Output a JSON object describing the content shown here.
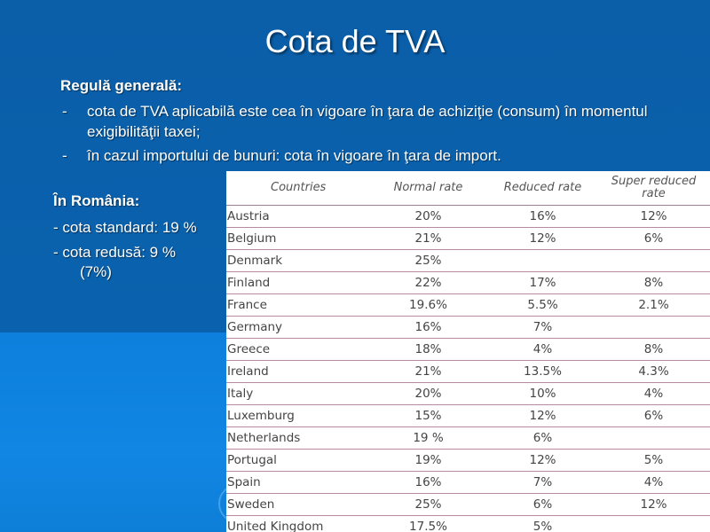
{
  "slide": {
    "title": "Cota de TVA",
    "rule_heading": "Regulă generală:",
    "bullets": [
      "cota de TVA aplicabilă este cea în vigoare în ţara de achiziţie (consum) în momentul exigibilităţii taxei;",
      "în cazul importului de bunuri: cota în vigoare în ţara de import."
    ],
    "bullet_marker": "-",
    "romania": {
      "heading": "În România:",
      "standard": "- cota standard: 19 %",
      "reduced": "- cota redusă: 9 %",
      "reduced_cont": "(7%)"
    }
  },
  "table": {
    "headers": [
      "Countries",
      "Normal rate",
      "Reduced rate",
      "Super reduced rate"
    ],
    "rows": [
      [
        "Austria",
        "20%",
        "16%",
        "12%"
      ],
      [
        "Belgium",
        "21%",
        "12%",
        "6%"
      ],
      [
        "Denmark",
        "25%",
        "",
        ""
      ],
      [
        "Finland",
        "22%",
        "17%",
        "8%"
      ],
      [
        "France",
        "19.6%",
        "5.5%",
        "2.1%"
      ],
      [
        "Germany",
        "16%",
        "7%",
        ""
      ],
      [
        "Greece",
        "18%",
        "4%",
        "8%"
      ],
      [
        "Ireland",
        "21%",
        "13.5%",
        "4.3%"
      ],
      [
        "Italy",
        "20%",
        "10%",
        "4%"
      ],
      [
        "Luxemburg",
        "15%",
        "12%",
        "6%"
      ],
      [
        "Netherlands",
        "19 %",
        "6%",
        ""
      ],
      [
        "Portugal",
        "19%",
        "12%",
        "5%"
      ],
      [
        "Spain",
        "16%",
        "7%",
        "4%"
      ],
      [
        "Sweden",
        "25%",
        "6%",
        "12%"
      ],
      [
        "United Kingdom",
        "17.5%",
        "5%",
        ""
      ]
    ]
  }
}
